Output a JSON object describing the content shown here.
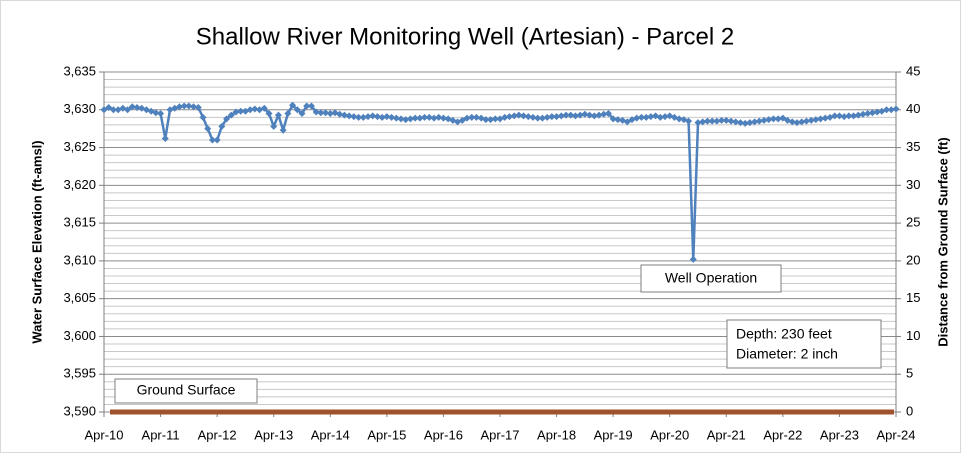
{
  "chart_data": {
    "type": "line",
    "title": "Shallow River Monitoring Well (Artesian) - Parcel 2",
    "y_label": "Water Surface Elevation (ft-amsl)",
    "y2_label": "Distance from Ground Surface (ft)",
    "categories": [
      "Apr-10",
      null,
      null,
      null,
      null,
      null,
      null,
      null,
      null,
      null,
      null,
      null,
      "Apr-11",
      null,
      null,
      null,
      null,
      null,
      null,
      null,
      null,
      null,
      null,
      null,
      "Apr-12",
      null,
      null,
      null,
      null,
      null,
      null,
      null,
      null,
      null,
      null,
      null,
      "Apr-13",
      null,
      null,
      null,
      null,
      null,
      null,
      null,
      null,
      null,
      null,
      null,
      "Apr-14",
      null,
      null,
      null,
      null,
      null,
      null,
      null,
      null,
      null,
      null,
      null,
      "Apr-15",
      null,
      null,
      null,
      null,
      null,
      null,
      null,
      null,
      null,
      null,
      null,
      "Apr-16",
      null,
      null,
      null,
      null,
      null,
      null,
      null,
      null,
      null,
      null,
      null,
      "Apr-17",
      null,
      null,
      null,
      null,
      null,
      null,
      null,
      null,
      null,
      null,
      null,
      "Apr-18",
      null,
      null,
      null,
      null,
      null,
      null,
      null,
      null,
      null,
      null,
      null,
      "Apr-19",
      null,
      null,
      null,
      null,
      null,
      null,
      null,
      null,
      null,
      null,
      null,
      "Apr-20",
      null,
      null,
      null,
      null,
      null,
      null,
      null,
      null,
      null,
      null,
      null,
      "Apr-21",
      null,
      null,
      null,
      null,
      null,
      null,
      null,
      null,
      null,
      null,
      null,
      "Apr-22",
      null,
      null,
      null,
      null,
      null,
      null,
      null,
      null,
      null,
      null,
      null,
      "Apr-23",
      null,
      null,
      null,
      null,
      null,
      null,
      null,
      null,
      null,
      null,
      null,
      "Apr-24"
    ],
    "series": [
      {
        "color": "#4f81bd",
        "values": [
          3630,
          3630.3,
          3630,
          3630,
          3630.2,
          3630,
          3630.4,
          3630.3,
          3630.2,
          3630,
          3629.8,
          3629.6,
          3629.5,
          3626.2,
          3630,
          3630.2,
          3630.4,
          3630.5,
          3630.5,
          3630.4,
          3630.3,
          3629,
          3627.5,
          3626,
          3626,
          3627.8,
          3628.8,
          3629.3,
          3629.7,
          3629.8,
          3629.8,
          3630,
          3630.1,
          3630,
          3630.2,
          3629.5,
          3627.8,
          3629.3,
          3627.3,
          3629.5,
          3630.6,
          3630,
          3629.5,
          3630.5,
          3630.5,
          3629.7,
          3629.6,
          3629.6,
          3629.5,
          3629.6,
          3629.4,
          3629.3,
          3629.2,
          3629.1,
          3629.0,
          3629.0,
          3629.1,
          3629.2,
          3629.1,
          3629.0,
          3629.1,
          3629.0,
          3628.9,
          3628.8,
          3628.7,
          3628.8,
          3628.9,
          3628.9,
          3629.0,
          3629.0,
          3628.9,
          3629.0,
          3628.9,
          3628.8,
          3628.6,
          3628.4,
          3628.6,
          3628.9,
          3629.0,
          3629.0,
          3628.9,
          3628.7,
          3628.7,
          3628.8,
          3628.8,
          3629.0,
          3629.1,
          3629.2,
          3629.3,
          3629.2,
          3629.1,
          3629.0,
          3628.9,
          3628.9,
          3629.0,
          3629.1,
          3629.1,
          3629.2,
          3629.3,
          3629.3,
          3629.2,
          3629.3,
          3629.4,
          3629.3,
          3629.2,
          3629.3,
          3629.4,
          3629.5,
          3628.8,
          3628.7,
          3628.6,
          3628.4,
          3628.7,
          3628.9,
          3629.0,
          3629.0,
          3629.1,
          3629.2,
          3629.0,
          3629.1,
          3629.2,
          3629.0,
          3628.8,
          3628.7,
          3628.5,
          3610.2,
          3628.3,
          3628.4,
          3628.5,
          3628.5,
          3628.5,
          3628.6,
          3628.6,
          3628.5,
          3628.4,
          3628.3,
          3628.2,
          3628.3,
          3628.4,
          3628.5,
          3628.6,
          3628.7,
          3628.8,
          3628.8,
          3628.9,
          3628.6,
          3628.4,
          3628.3,
          3628.4,
          3628.5,
          3628.6,
          3628.7,
          3628.8,
          3628.9,
          3629.0,
          3629.2,
          3629.2,
          3629.1,
          3629.2,
          3629.2,
          3629.3,
          3629.4,
          3629.5,
          3629.6,
          3629.7,
          3629.8,
          3630.0,
          3630.0,
          3630.1
        ]
      }
    ],
    "ylim": [
      3590,
      3635
    ],
    "yticks": [
      {
        "value": 3590,
        "label": "3,590"
      },
      {
        "value": 3595,
        "label": "3,595"
      },
      {
        "value": 3600,
        "label": "3,600"
      },
      {
        "value": 3605,
        "label": "3,605"
      },
      {
        "value": 3610,
        "label": "3,610"
      },
      {
        "value": 3615,
        "label": "3,615"
      },
      {
        "value": 3620,
        "label": "3,620"
      },
      {
        "value": 3625,
        "label": "3,625"
      },
      {
        "value": 3630,
        "label": "3,630"
      },
      {
        "value": 3635,
        "label": "3,635"
      }
    ],
    "minor_yticks": [
      3591,
      3592,
      3593,
      3594,
      3596,
      3597,
      3598,
      3599,
      3601,
      3602,
      3603,
      3604,
      3606,
      3607,
      3608,
      3609,
      3611,
      3612,
      3613,
      3614,
      3616,
      3617,
      3618,
      3619,
      3621,
      3622,
      3623,
      3624,
      3626,
      3627,
      3628,
      3629,
      3631,
      3632,
      3633,
      3634
    ],
    "y2lim": [
      0,
      45
    ],
    "y2ticks": [
      0,
      5,
      10,
      15,
      20,
      25,
      30,
      35,
      40,
      45
    ],
    "grid": true,
    "ground_surface": {
      "label": "Ground Surface",
      "value": 3590,
      "color": "#a0522d"
    },
    "annotations": [
      "Well Operation",
      "Depth:  230 feet",
      "Diameter:  2 inch"
    ]
  }
}
